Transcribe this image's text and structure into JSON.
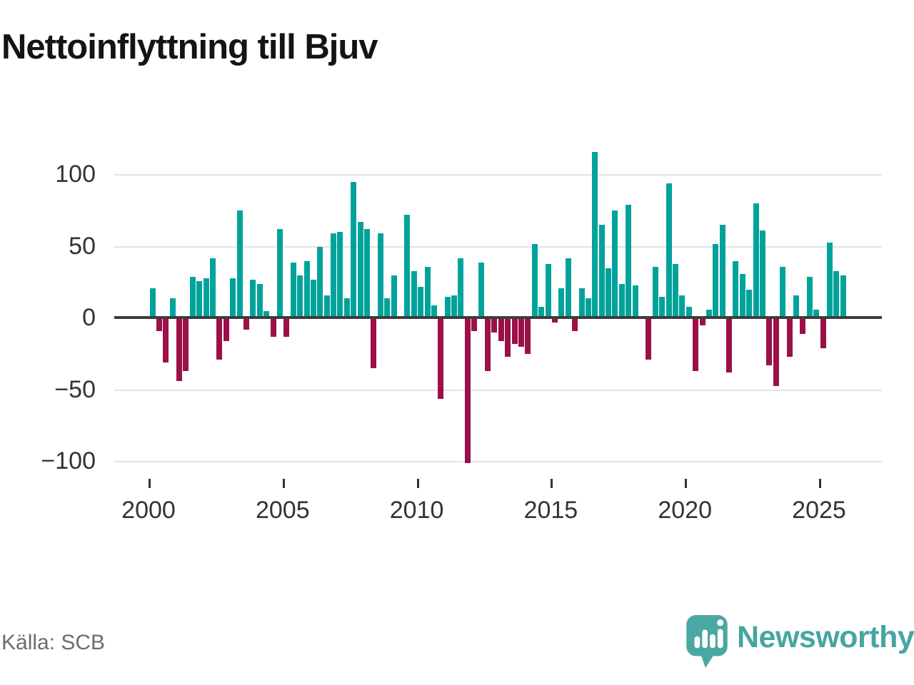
{
  "page": {
    "title": "Nettoinflyttning till Bjuv",
    "source": "Källa: SCB",
    "brand": {
      "name": "Newsworthy",
      "icon": "newsworthy-speech-bubble-bar-chart-icon",
      "color": "#46a5a2"
    }
  },
  "colors": {
    "positive": "#00a39b",
    "negative": "#9c1048",
    "axis": "#3d3d3d",
    "gridline": "#e4e4e4",
    "tick_label": "#333333",
    "title_text": "#141414",
    "source_text": "#6c6c72",
    "background": "#ffffff"
  },
  "chart_data": {
    "type": "bar",
    "title": "Nettoinflyttning till Bjuv",
    "x_unit": "quarter",
    "start_period": "2000Q1",
    "end_period": "2025Q4",
    "grid": "horizontal",
    "legend": "none",
    "ylim": [
      -110,
      122
    ],
    "y_ticks": [
      100,
      50,
      0,
      -50,
      -100
    ],
    "y_tick_labels": [
      "100",
      "50",
      "0",
      "−50",
      "−100"
    ],
    "x_tick_years": [
      2000,
      2005,
      2010,
      2015,
      2020,
      2025
    ],
    "series": [
      {
        "name": "Nettoinflyttning",
        "values": [
          21,
          -9,
          -31,
          14,
          -44,
          -37,
          29,
          26,
          28,
          42,
          -29,
          -16,
          28,
          75,
          -8,
          27,
          24,
          5,
          -13,
          62,
          -13,
          39,
          30,
          40,
          27,
          50,
          16,
          59,
          60,
          14,
          95,
          67,
          62,
          -35,
          59,
          14,
          30,
          0,
          72,
          33,
          22,
          36,
          9,
          -56,
          15,
          16,
          42,
          -101,
          -9,
          39,
          -37,
          -10,
          -16,
          -27,
          -18,
          -20,
          -25,
          52,
          8,
          38,
          -3,
          21,
          42,
          -9,
          21,
          14,
          116,
          65,
          35,
          75,
          24,
          79,
          23,
          0,
          -29,
          36,
          15,
          94,
          38,
          16,
          8,
          -37,
          -5,
          6,
          52,
          65,
          -38,
          40,
          31,
          20,
          80,
          61,
          -33,
          -47,
          36,
          -27,
          16,
          -11,
          29,
          6,
          -21,
          53,
          33,
          30
        ]
      }
    ]
  }
}
